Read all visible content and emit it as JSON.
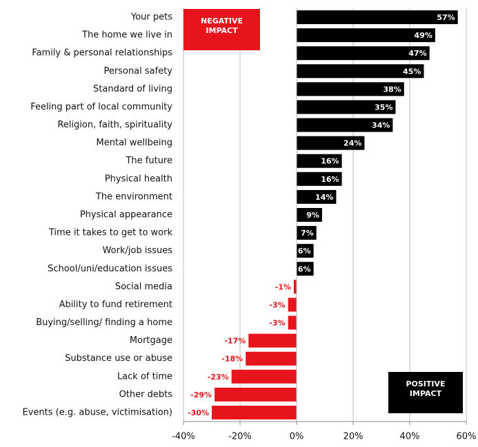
{
  "chart_data": {
    "type": "bar",
    "orientation": "horizontal",
    "categories": [
      "Your pets",
      "The home we live in",
      "Family & personal relationships",
      "Personal safety",
      "Standard of living",
      "Feeling part of local community",
      "Religion, faith, spirituality",
      "Mental wellbeing",
      "The future",
      "Physical health",
      "The environment",
      "Physical appearance",
      "Time it takes to get to work",
      "Work/job issues",
      "School/uni/education issues",
      "Social media",
      "Ability to fund retirement",
      "Buying/selling/ finding a home",
      "Mortgage",
      "Substance use or abuse",
      "Lack of time",
      "Other debts",
      "Events (e.g. abuse, victimisation)"
    ],
    "values": [
      57,
      49,
      47,
      45,
      38,
      35,
      34,
      24,
      16,
      16,
      14,
      9,
      7,
      6,
      6,
      -1,
      -3,
      -3,
      -17,
      -18,
      -23,
      -29,
      -30
    ],
    "value_labels": [
      "57%",
      "49%",
      "47%",
      "45%",
      "38%",
      "35%",
      "34%",
      "24%",
      "16%",
      "16%",
      "14%",
      "9%",
      "7%",
      "6%",
      "6%",
      "-1%",
      "-3%",
      "-3%",
      "-17%",
      "-18%",
      "-23%",
      "-29%",
      "-30%"
    ],
    "positive_color": "#000000",
    "negative_color": "#e8141c",
    "xlim": [
      -40,
      60
    ],
    "xticks": [
      {
        "value": -40,
        "label": "-40%"
      },
      {
        "value": -20,
        "label": "-20%"
      },
      {
        "value": 0,
        "label": "0%"
      },
      {
        "value": 20,
        "label": "20%"
      },
      {
        "value": 40,
        "label": "40%"
      },
      {
        "value": 60,
        "label": "60%"
      }
    ],
    "grid": true,
    "annotations": [
      {
        "lines": [
          "NEGATIVE",
          "IMPACT"
        ],
        "color": "#e8141c"
      },
      {
        "lines": [
          "POSITIVE",
          "IMPACT"
        ],
        "color": "#000000"
      }
    ]
  }
}
